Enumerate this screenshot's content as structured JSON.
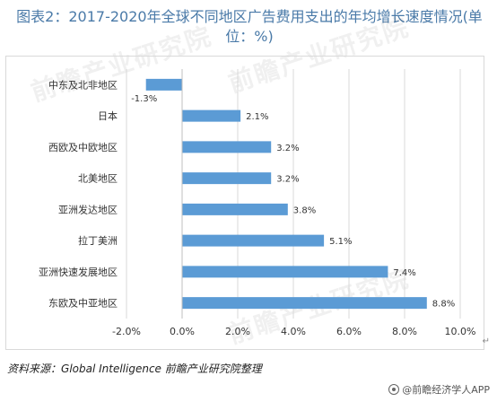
{
  "title": "图表2：2017-2020年全球不同地区广告费用支出的年均增长速度情况(单位：%)",
  "chart_data": {
    "type": "bar",
    "orientation": "horizontal",
    "categories": [
      "中东及北非地区",
      "日本",
      "西欧及中欧地区",
      "北美地区",
      "亚洲发达地区",
      "拉丁美洲",
      "亚洲快速发展地区",
      "东欧及中亚地区"
    ],
    "values": [
      -1.3,
      2.1,
      3.2,
      3.2,
      3.8,
      5.1,
      7.4,
      8.8
    ],
    "value_labels": [
      "-1.3%",
      "2.1%",
      "3.2%",
      "3.2%",
      "3.8%",
      "5.1%",
      "7.4%",
      "8.8%"
    ],
    "xlim": [
      -2.0,
      10.0
    ],
    "xticks": [
      -2.0,
      0.0,
      2.0,
      4.0,
      6.0,
      8.0,
      10.0
    ],
    "xtick_labels": [
      "-2.0%",
      "0.0%",
      "2.0%",
      "4.0%",
      "6.0%",
      "8.0%",
      "10.0%"
    ],
    "bar_color": "#5b9bd5",
    "grid": "vertical",
    "legend": "none"
  },
  "source_prefix": "资料来源：",
  "source_text": "Global Intelligence 前瞻产业研究院整理",
  "brand": "@前瞻经济学人APP",
  "watermark": "前瞻产业研究院"
}
